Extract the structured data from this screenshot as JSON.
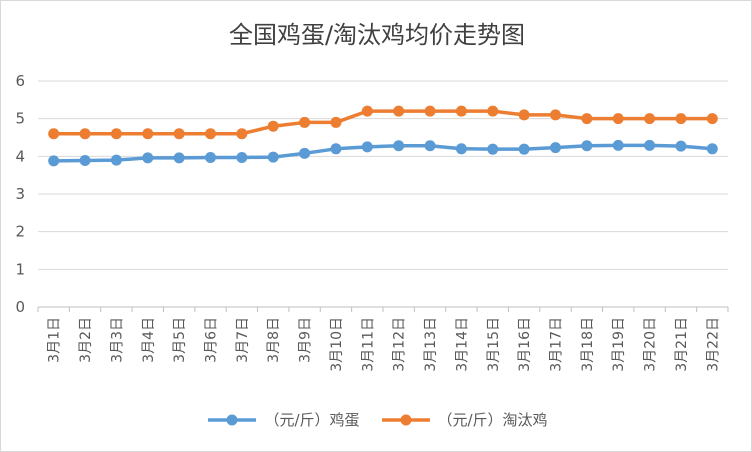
{
  "chart_data": {
    "type": "line",
    "title": "全国鸡蛋/淘汰鸡均价走势图",
    "xlabel": "",
    "ylabel": "",
    "categories": [
      "3月1日",
      "3月2日",
      "3月3日",
      "3月4日",
      "3月5日",
      "3月6日",
      "3月7日",
      "3月8日",
      "3月9日",
      "3月10日",
      "3月11日",
      "3月12日",
      "3月13日",
      "3月14日",
      "3月15日",
      "3月16日",
      "3月17日",
      "3月18日",
      "3月19日",
      "3月20日",
      "3月21日",
      "3月22日"
    ],
    "y_ticks": [
      "0",
      "1",
      "2",
      "3",
      "4",
      "5",
      "6"
    ],
    "ylim": [
      0,
      6
    ],
    "grid": true,
    "legend_position": "bottom",
    "series": [
      {
        "name": "（元/斤）鸡蛋",
        "color": "#5b9bd5",
        "values": [
          3.88,
          3.89,
          3.9,
          3.96,
          3.96,
          3.97,
          3.97,
          3.98,
          4.08,
          4.2,
          4.25,
          4.28,
          4.28,
          4.2,
          4.19,
          4.19,
          4.23,
          4.28,
          4.29,
          4.29,
          4.27,
          4.2
        ]
      },
      {
        "name": "（元/斤）淘汰鸡",
        "color": "#ed7d31",
        "values": [
          4.6,
          4.6,
          4.6,
          4.6,
          4.6,
          4.6,
          4.6,
          4.8,
          4.9,
          4.9,
          5.2,
          5.2,
          5.2,
          5.2,
          5.2,
          5.1,
          5.1,
          5.0,
          5.0,
          5.0,
          5.0,
          5.0
        ]
      }
    ]
  }
}
